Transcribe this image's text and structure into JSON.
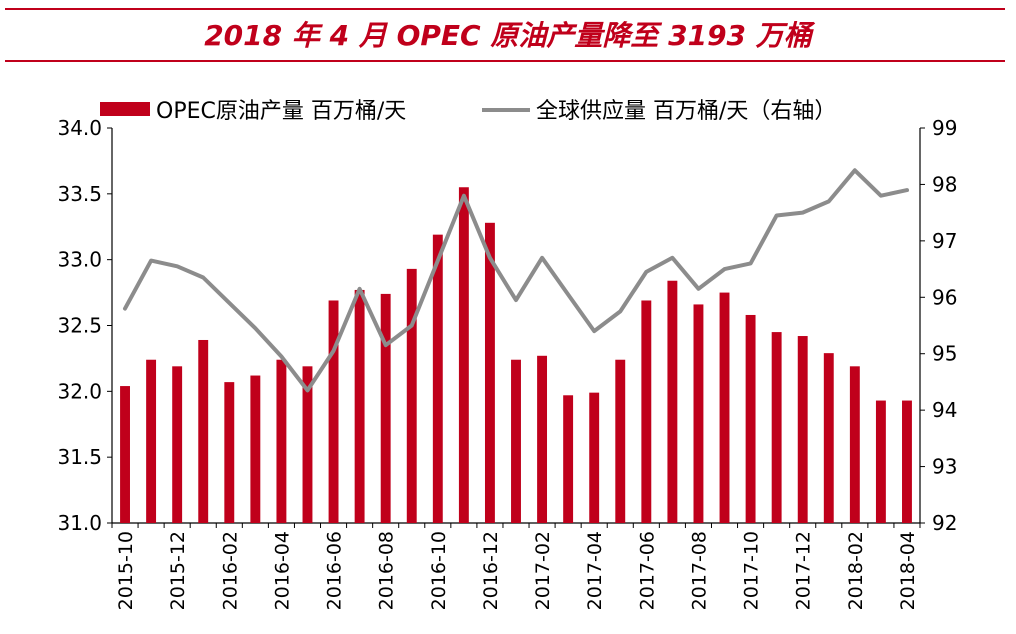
{
  "title": "2018 年 4 月 OPEC 原油产量降至 3193 万桶",
  "chart_data": {
    "type": "bar+line",
    "x": [
      "2015-10",
      "2015-11",
      "2015-12",
      "2016-01",
      "2016-02",
      "2016-03",
      "2016-04",
      "2016-05",
      "2016-06",
      "2016-07",
      "2016-08",
      "2016-09",
      "2016-10",
      "2016-11",
      "2016-12",
      "2017-01",
      "2017-02",
      "2017-03",
      "2017-04",
      "2017-05",
      "2017-06",
      "2017-07",
      "2017-08",
      "2017-09",
      "2017-10",
      "2017-11",
      "2017-12",
      "2018-01",
      "2018-02",
      "2018-03",
      "2018-04"
    ],
    "xtick_labels": [
      "2015-10",
      "2015-12",
      "2016-02",
      "2016-04",
      "2016-06",
      "2016-08",
      "2016-10",
      "2016-12",
      "2017-02",
      "2017-04",
      "2017-06",
      "2017-08",
      "2017-10",
      "2017-12",
      "2018-02",
      "2018-04"
    ],
    "series": [
      {
        "name": "OPEC原油产量 百万桶/天",
        "type": "bar",
        "axis": "left",
        "color": "#c0001b",
        "values": [
          32.04,
          32.24,
          32.19,
          32.39,
          32.07,
          32.12,
          32.24,
          32.19,
          32.69,
          32.77,
          32.74,
          32.93,
          33.19,
          33.55,
          33.28,
          32.24,
          32.27,
          31.97,
          31.99,
          32.24,
          32.69,
          32.84,
          32.66,
          32.75,
          32.58,
          32.45,
          32.42,
          32.29,
          32.19,
          31.93,
          31.93
        ]
      },
      {
        "name": "全球供应量 百万桶/天（右轴）",
        "type": "line",
        "axis": "right",
        "color": "#8c8c8c",
        "values": [
          95.8,
          96.65,
          96.55,
          96.35,
          95.9,
          95.45,
          94.95,
          94.35,
          95.05,
          96.15,
          95.15,
          95.5,
          96.65,
          97.8,
          96.7,
          95.95,
          96.7,
          96.05,
          95.4,
          95.75,
          96.45,
          96.7,
          96.15,
          96.5,
          96.6,
          97.45,
          97.5,
          97.7,
          98.25,
          97.8,
          97.9
        ]
      }
    ],
    "ylim_left": [
      31.0,
      34.0
    ],
    "yticks_left": [
      "31.0",
      "31.5",
      "32.0",
      "32.5",
      "33.0",
      "33.5",
      "34.0"
    ],
    "ylim_right": [
      92,
      99
    ],
    "yticks_right": [
      "92",
      "93",
      "94",
      "95",
      "96",
      "97",
      "98",
      "99"
    ],
    "legend_position": "top"
  }
}
